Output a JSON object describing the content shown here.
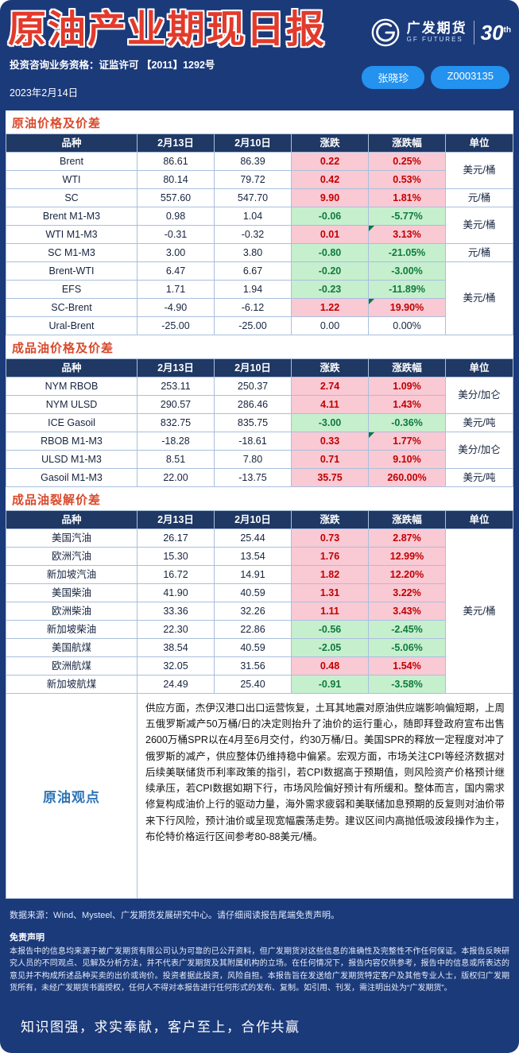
{
  "colors": {
    "page_background": "#1b3a7a",
    "title_red": "#e23a2b",
    "section_title_red": "#d9492c",
    "chip_blue": "#2492ef",
    "table_header_navy": "#1f3864",
    "up_bg": "#f9c9d4",
    "up_text": "#c00000",
    "down_bg": "#c6efce",
    "down_text": "#107a3c",
    "viewpoint_blue": "#2e74b5"
  },
  "header": {
    "title": "原油产业期现日报",
    "brand_cn": "广发期货",
    "brand_en": "GF FUTURES",
    "anniversary": "30",
    "anniversary_sup": "th",
    "qualification": "投资咨询业务资格：证监许可 【2011】1292号",
    "date": "2023年2月14日",
    "analyst_name": "张晓珍",
    "analyst_id": "Z0003135"
  },
  "tables": [
    {
      "section_title": "原油价格及价差",
      "columns": [
        "品种",
        "2月13日",
        "2月10日",
        "涨跌",
        "涨跌幅",
        "单位"
      ],
      "rows": [
        {
          "name": "Brent",
          "d1": "86.61",
          "d2": "86.39",
          "chg": "0.22",
          "pct": "0.25%",
          "trend": "up",
          "marker": false
        },
        {
          "name": "WTI",
          "d1": "80.14",
          "d2": "79.72",
          "chg": "0.42",
          "pct": "0.53%",
          "trend": "up",
          "marker": false
        },
        {
          "name": "SC",
          "d1": "557.60",
          "d2": "547.70",
          "chg": "9.90",
          "pct": "1.81%",
          "trend": "up",
          "marker": false
        },
        {
          "name": "Brent M1-M3",
          "d1": "0.98",
          "d2": "1.04",
          "chg": "-0.06",
          "pct": "-5.77%",
          "trend": "down",
          "marker": false
        },
        {
          "name": "WTI M1-M3",
          "d1": "-0.31",
          "d2": "-0.32",
          "chg": "0.01",
          "pct": "3.13%",
          "trend": "up",
          "marker": true
        },
        {
          "name": "SC M1-M3",
          "d1": "3.00",
          "d2": "3.80",
          "chg": "-0.80",
          "pct": "-21.05%",
          "trend": "down",
          "marker": false
        },
        {
          "name": "Brent-WTI",
          "d1": "6.47",
          "d2": "6.67",
          "chg": "-0.20",
          "pct": "-3.00%",
          "trend": "down",
          "marker": false
        },
        {
          "name": "EFS",
          "d1": "1.71",
          "d2": "1.94",
          "chg": "-0.23",
          "pct": "-11.89%",
          "trend": "down",
          "marker": false
        },
        {
          "name": "SC-Brent",
          "d1": "-4.90",
          "d2": "-6.12",
          "chg": "1.22",
          "pct": "19.90%",
          "trend": "up",
          "marker": true
        },
        {
          "name": "Ural-Brent",
          "d1": "-25.00",
          "d2": "-25.00",
          "chg": "0.00",
          "pct": "0.00%",
          "trend": "flat",
          "marker": false
        }
      ],
      "units": [
        {
          "label": "美元/桶",
          "rowspan": 2
        },
        {
          "label": "元/桶",
          "rowspan": 1
        },
        {
          "label": "美元/桶",
          "rowspan": 2
        },
        {
          "label": "元/桶",
          "rowspan": 1
        },
        {
          "label": "美元/桶",
          "rowspan": 4
        }
      ]
    },
    {
      "section_title": "成品油价格及价差",
      "columns": [
        "品种",
        "2月13日",
        "2月10日",
        "涨跌",
        "涨跌幅",
        "单位"
      ],
      "rows": [
        {
          "name": "NYM RBOB",
          "d1": "253.11",
          "d2": "250.37",
          "chg": "2.74",
          "pct": "1.09%",
          "trend": "up",
          "marker": false
        },
        {
          "name": "NYM ULSD",
          "d1": "290.57",
          "d2": "286.46",
          "chg": "4.11",
          "pct": "1.43%",
          "trend": "up",
          "marker": false
        },
        {
          "name": "ICE Gasoil",
          "d1": "832.75",
          "d2": "835.75",
          "chg": "-3.00",
          "pct": "-0.36%",
          "trend": "down",
          "marker": false
        },
        {
          "name": "RBOB M1-M3",
          "d1": "-18.28",
          "d2": "-18.61",
          "chg": "0.33",
          "pct": "1.77%",
          "trend": "up",
          "marker": true
        },
        {
          "name": "ULSD M1-M3",
          "d1": "8.51",
          "d2": "7.80",
          "chg": "0.71",
          "pct": "9.10%",
          "trend": "up",
          "marker": false
        },
        {
          "name": "Gasoil M1-M3",
          "d1": "22.00",
          "d2": "-13.75",
          "chg": "35.75",
          "pct": "260.00%",
          "trend": "up",
          "marker": false
        }
      ],
      "units": [
        {
          "label": "美分/加仑",
          "rowspan": 2
        },
        {
          "label": "美元/吨",
          "rowspan": 1
        },
        {
          "label": "美分/加仑",
          "rowspan": 2
        },
        {
          "label": "美元/吨",
          "rowspan": 1
        }
      ]
    },
    {
      "section_title": "成品油裂解价差",
      "columns": [
        "品种",
        "2月13日",
        "2月10日",
        "涨跌",
        "涨跌幅",
        "单位"
      ],
      "rows": [
        {
          "name": "美国汽油",
          "d1": "26.17",
          "d2": "25.44",
          "chg": "0.73",
          "pct": "2.87%",
          "trend": "up",
          "marker": false
        },
        {
          "name": "欧洲汽油",
          "d1": "15.30",
          "d2": "13.54",
          "chg": "1.76",
          "pct": "12.99%",
          "trend": "up",
          "marker": false
        },
        {
          "name": "新加坡汽油",
          "d1": "16.72",
          "d2": "14.91",
          "chg": "1.82",
          "pct": "12.20%",
          "trend": "up",
          "marker": false
        },
        {
          "name": "美国柴油",
          "d1": "41.90",
          "d2": "40.59",
          "chg": "1.31",
          "pct": "3.22%",
          "trend": "up",
          "marker": false
        },
        {
          "name": "欧洲柴油",
          "d1": "33.36",
          "d2": "32.26",
          "chg": "1.11",
          "pct": "3.43%",
          "trend": "up",
          "marker": false
        },
        {
          "name": "新加坡柴油",
          "d1": "22.30",
          "d2": "22.86",
          "chg": "-0.56",
          "pct": "-2.45%",
          "trend": "down",
          "marker": false
        },
        {
          "name": "美国航煤",
          "d1": "38.54",
          "d2": "40.59",
          "chg": "-2.05",
          "pct": "-5.06%",
          "trend": "down",
          "marker": false
        },
        {
          "name": "欧洲航煤",
          "d1": "32.05",
          "d2": "31.56",
          "chg": "0.48",
          "pct": "1.54%",
          "trend": "up",
          "marker": false
        },
        {
          "name": "新加坡航煤",
          "d1": "24.49",
          "d2": "25.40",
          "chg": "-0.91",
          "pct": "-3.58%",
          "trend": "down",
          "marker": false
        }
      ],
      "units": [
        {
          "label": "美元/桶",
          "rowspan": 9
        }
      ]
    }
  ],
  "viewpoint": {
    "label": "原油观点",
    "text": "供应方面，杰伊汉港口出口运营恢复，土耳其地震对原油供应端影响偏短期，上周五俄罗斯减产50万桶/日的决定则抬升了油价的运行重心，随即拜登政府宣布出售2600万桶SPR以在4月至6月交付，约30万桶/日。美国SPR的释放一定程度对冲了俄罗斯的减产，供应整体仍维持稳中偏紧。宏观方面，市场关注CPI等经济数据对后续美联储货币利率政策的指引，若CPI数据高于预期值，则风险资产价格预计继续承压，若CPI数据如期下行，市场风险偏好预计有所缓和。整体而言，国内需求修复构成油价上行的驱动力量，海外需求疲弱和美联储加息预期的反复则对油价带来下行风险，预计油价或呈现宽幅震荡走势。建议区间内高抛低吸波段操作为主，布伦特价格运行区间参考80-88美元/桶。"
  },
  "footer": {
    "source": "数据来源：Wind、Mysteel、广发期货发展研究中心。请仔细阅读报告尾端免责声明。",
    "disclaimer_title": "免责声明",
    "disclaimer": "本报告中的信息均来源于被广发期货有限公司认为可靠的已公开资料，但广发期货对这些信息的准确性及完整性不作任何保证。本报告反映研究人员的不同观点、见解及分析方法，并不代表广发期货及其附属机构的立场。在任何情况下，报告内容仅供参考，报告中的信息或所表达的意见并不构成所述品种买卖的出价或询价。投资者据此投资，风险自担。本报告旨在发送给广发期货特定客户及其他专业人士，版权归广发期货所有，未经广发期货书面授权，任何人不得对本报告进行任何形式的发布、复制。如引用、刊发，需注明出处为“广发期货”。",
    "slogan": "知识图强，求实奉献，客户至上，合作共赢"
  }
}
